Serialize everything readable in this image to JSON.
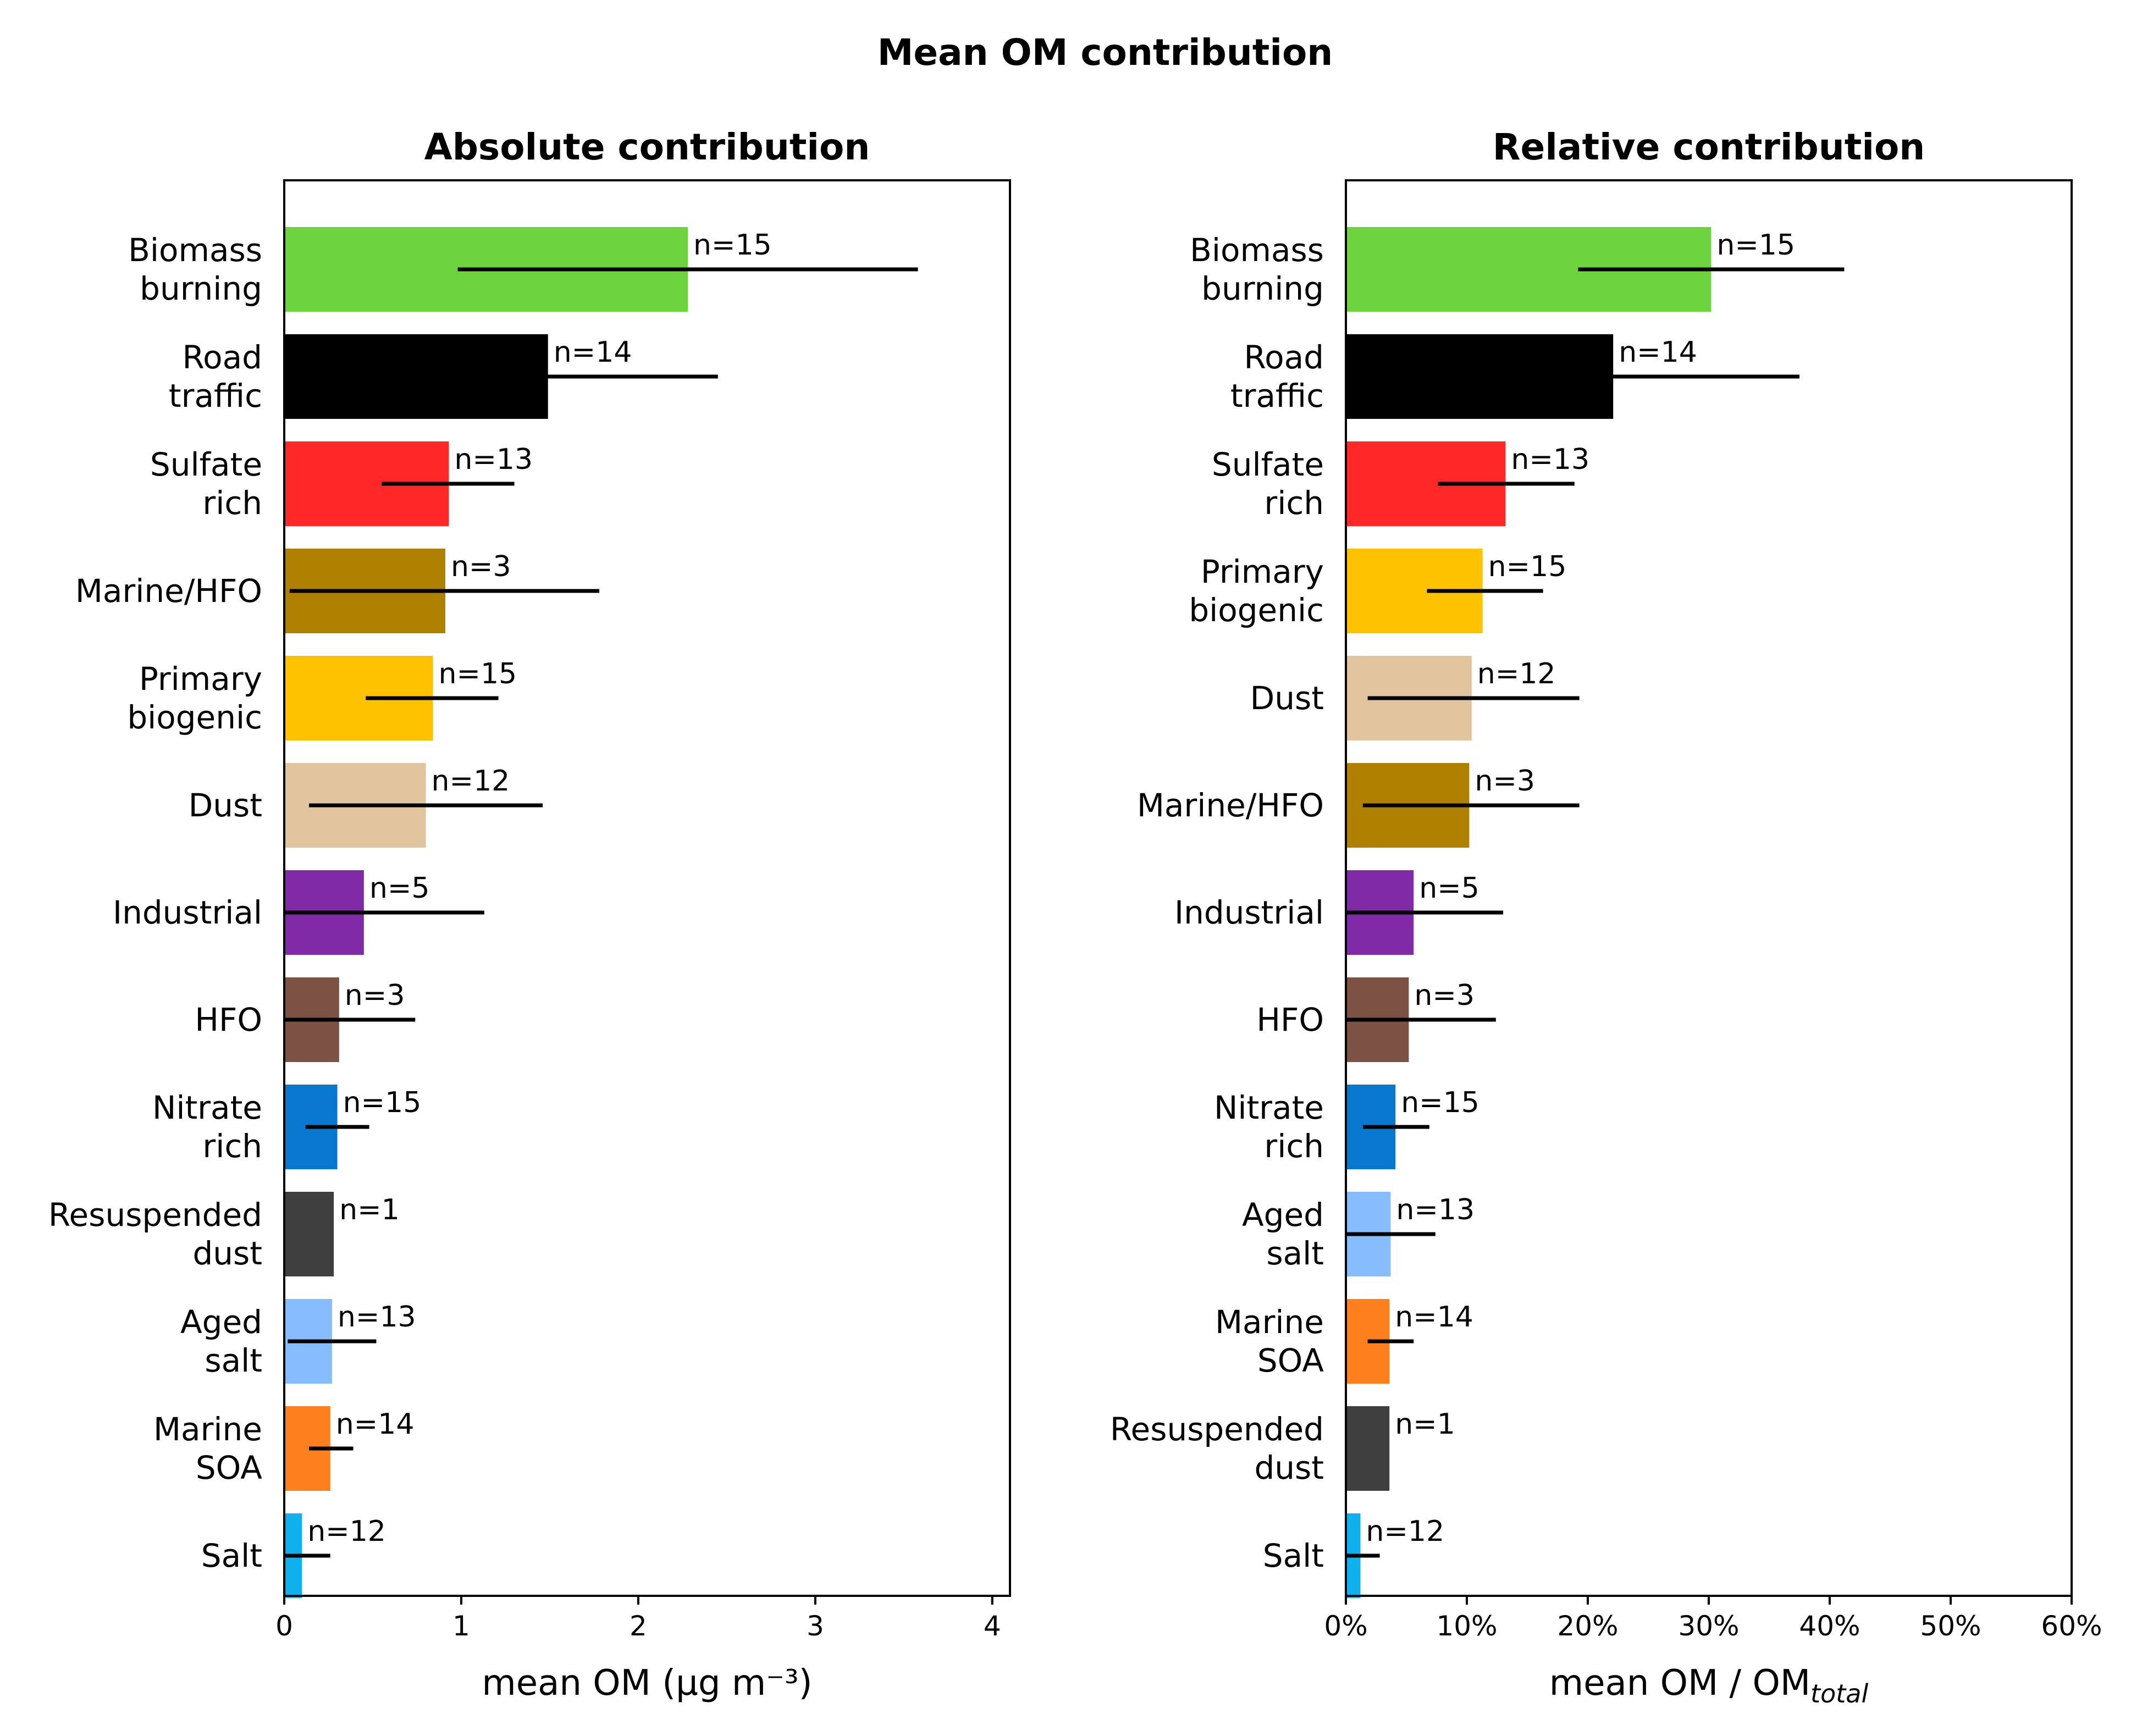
{
  "chart_data": {
    "title": "Mean OM contribution",
    "panels": [
      {
        "type": "bar",
        "orientation": "horizontal",
        "title": "Absolute contribution",
        "xlabel": "mean OM (µg m⁻³)",
        "xlim": [
          0,
          4.1
        ],
        "xticks": [
          0,
          1,
          2,
          3,
          4
        ],
        "xtick_labels": [
          "0",
          "1",
          "2",
          "3",
          "4"
        ],
        "grid": false,
        "bars": [
          {
            "label": [
              "Biomass",
              "burning"
            ],
            "value": 2.28,
            "err_lo": 0.98,
            "err_hi": 3.58,
            "n": "n=15",
            "color": "#6dd43f"
          },
          {
            "label": [
              "Road",
              "traffic"
            ],
            "value": 1.49,
            "err_lo": 0.0,
            "err_hi": 2.45,
            "n": "n=14",
            "color": "#000000"
          },
          {
            "label": [
              "Sulfate",
              "rich"
            ],
            "value": 0.93,
            "err_lo": 0.55,
            "err_hi": 1.3,
            "n": "n=13",
            "color": "#fe2828"
          },
          {
            "label": [
              "Marine/HFO"
            ],
            "value": 0.91,
            "err_lo": 0.03,
            "err_hi": 1.78,
            "n": "n=3",
            "color": "#b08000"
          },
          {
            "label": [
              "Primary",
              "biogenic"
            ],
            "value": 0.84,
            "err_lo": 0.46,
            "err_hi": 1.21,
            "n": "n=15",
            "color": "#ffc200"
          },
          {
            "label": [
              "Dust"
            ],
            "value": 0.8,
            "err_lo": 0.14,
            "err_hi": 1.46,
            "n": "n=12",
            "color": "#e1c59f"
          },
          {
            "label": [
              "Industrial"
            ],
            "value": 0.45,
            "err_lo": 0.0,
            "err_hi": 1.13,
            "n": "n=5",
            "color": "#7e2ba5"
          },
          {
            "label": [
              "HFO"
            ],
            "value": 0.31,
            "err_lo": 0.0,
            "err_hi": 0.74,
            "n": "n=3",
            "color": "#7b5244"
          },
          {
            "label": [
              "Nitrate",
              "rich"
            ],
            "value": 0.3,
            "err_lo": 0.12,
            "err_hi": 0.48,
            "n": "n=15",
            "color": "#0878cf"
          },
          {
            "label": [
              "Resuspended",
              "dust"
            ],
            "value": 0.28,
            "err_lo": null,
            "err_hi": null,
            "n": "n=1",
            "color": "#3f3f3f"
          },
          {
            "label": [
              "Aged",
              "salt"
            ],
            "value": 0.27,
            "err_lo": 0.02,
            "err_hi": 0.52,
            "n": "n=13",
            "color": "#86bdfe"
          },
          {
            "label": [
              "Marine",
              "SOA"
            ],
            "value": 0.26,
            "err_lo": 0.14,
            "err_hi": 0.39,
            "n": "n=14",
            "color": "#fe7f1d"
          },
          {
            "label": [
              "Salt"
            ],
            "value": 0.1,
            "err_lo": 0.0,
            "err_hi": 0.26,
            "n": "n=12",
            "color": "#0fb0ee"
          }
        ]
      },
      {
        "type": "bar",
        "orientation": "horizontal",
        "title": "Relative contribution",
        "xlabel_main": "mean OM / OM",
        "xlabel_sub": "total",
        "xlim": [
          0,
          60
        ],
        "xticks": [
          0,
          10,
          20,
          30,
          40,
          50,
          60
        ],
        "xtick_labels": [
          "0%",
          "10%",
          "20%",
          "30%",
          "40%",
          "50%",
          "60%"
        ],
        "grid": false,
        "bars": [
          {
            "label": [
              "Biomass",
              "burning"
            ],
            "value": 30.2,
            "err_lo": 19.2,
            "err_hi": 41.2,
            "n": "n=15",
            "color": "#6dd43f"
          },
          {
            "label": [
              "Road",
              "traffic"
            ],
            "value": 22.1,
            "err_lo": 21.2,
            "err_hi": 37.5,
            "n": "n=14",
            "color": "#000000"
          },
          {
            "label": [
              "Sulfate",
              "rich"
            ],
            "value": 13.2,
            "err_lo": 7.6,
            "err_hi": 18.9,
            "n": "n=13",
            "color": "#fe2828"
          },
          {
            "label": [
              "Primary",
              "biogenic"
            ],
            "value": 11.3,
            "err_lo": 6.7,
            "err_hi": 16.3,
            "n": "n=15",
            "color": "#ffc200"
          },
          {
            "label": [
              "Dust"
            ],
            "value": 10.4,
            "err_lo": 1.8,
            "err_hi": 19.3,
            "n": "n=12",
            "color": "#e1c59f"
          },
          {
            "label": [
              "Marine/HFO"
            ],
            "value": 10.2,
            "err_lo": 1.4,
            "err_hi": 19.3,
            "n": "n=3",
            "color": "#b08000"
          },
          {
            "label": [
              "Industrial"
            ],
            "value": 5.6,
            "err_lo": 0.0,
            "err_hi": 13.0,
            "n": "n=5",
            "color": "#7e2ba5"
          },
          {
            "label": [
              "HFO"
            ],
            "value": 5.2,
            "err_lo": 0.0,
            "err_hi": 12.4,
            "n": "n=3",
            "color": "#7b5244"
          },
          {
            "label": [
              "Nitrate",
              "rich"
            ],
            "value": 4.1,
            "err_lo": 1.4,
            "err_hi": 6.9,
            "n": "n=15",
            "color": "#0878cf"
          },
          {
            "label": [
              "Aged",
              "salt"
            ],
            "value": 3.7,
            "err_lo": 0.0,
            "err_hi": 7.4,
            "n": "n=13",
            "color": "#86bdfe"
          },
          {
            "label": [
              "Marine",
              "SOA"
            ],
            "value": 3.6,
            "err_lo": 1.8,
            "err_hi": 5.6,
            "n": "n=14",
            "color": "#fe7f1d"
          },
          {
            "label": [
              "Resuspended",
              "dust"
            ],
            "value": 3.6,
            "err_lo": null,
            "err_hi": null,
            "n": "n=1",
            "color": "#3f3f3f"
          },
          {
            "label": [
              "Salt"
            ],
            "value": 1.2,
            "err_lo": 0.0,
            "err_hi": 2.8,
            "n": "n=12",
            "color": "#0fb0ee"
          }
        ]
      }
    ]
  }
}
